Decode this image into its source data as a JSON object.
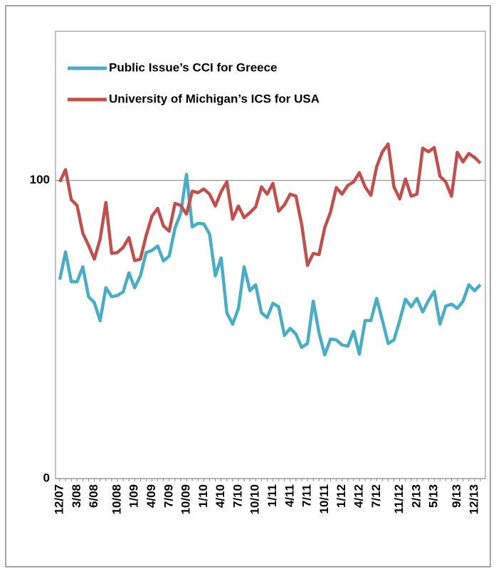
{
  "chart_data": {
    "type": "line",
    "categories": [
      "12/07",
      null,
      null,
      "3/08",
      null,
      null,
      "6/08",
      null,
      null,
      null,
      "10/08",
      null,
      null,
      "1/09",
      null,
      null,
      "4/09",
      null,
      null,
      "7/09",
      null,
      null,
      "10/09",
      null,
      null,
      "1/10",
      null,
      null,
      "4/10",
      null,
      null,
      "7/10",
      null,
      null,
      "10/10",
      null,
      null,
      "1/11",
      null,
      null,
      "4/11",
      null,
      null,
      "7/11",
      null,
      null,
      "10/11",
      null,
      null,
      "1/12",
      null,
      null,
      "4/12",
      null,
      null,
      "7/12",
      null,
      null,
      null,
      "11/12",
      null,
      null,
      "2/13",
      null,
      null,
      "5/13",
      null,
      null,
      null,
      "9/13",
      null,
      null,
      "12/13",
      null
    ],
    "series": [
      {
        "name": "Public Issue’s CCI for Greece",
        "color": "#4bacc6",
        "values": [
          66.7,
          76,
          66,
          66,
          71,
          61,
          59,
          53,
          64,
          61,
          61.4,
          62.6,
          69,
          64,
          68,
          75.8,
          76.5,
          78,
          73,
          74.6,
          84,
          89,
          102,
          84.4,
          85.6,
          85.4,
          82,
          68,
          74,
          55.6,
          51.8,
          57,
          71,
          63,
          65,
          55.6,
          54,
          58.8,
          57.6,
          48,
          50.4,
          48.4,
          44,
          45.3,
          59.5,
          48.9,
          41.5,
          46.8,
          46.5,
          44.8,
          44.4,
          49.4,
          41.7,
          53,
          53,
          60.4,
          53,
          45.3,
          46.5,
          53,
          60.2,
          57.6,
          60.4,
          55.9,
          59.7,
          62.8,
          51.8,
          57.8,
          58.5,
          57.1,
          59.5,
          65,
          63,
          65
        ]
      },
      {
        "name": "University of Michigan’s ICS for USA",
        "color": "#c0504d",
        "values": [
          99.5,
          103.6,
          93.5,
          91.6,
          82.3,
          78.2,
          73.6,
          80.3,
          92.6,
          75.5,
          75.8,
          77.5,
          80.8,
          73.1,
          73.6,
          81.5,
          88,
          90.6,
          84.7,
          83,
          92.3,
          91.6,
          88.7,
          96.4,
          95.9,
          97.1,
          95.4,
          91.4,
          96.2,
          99.5,
          87,
          91.4,
          87.5,
          89.2,
          91.1,
          97.8,
          95.4,
          99,
          89.7,
          91.8,
          95.4,
          94.7,
          85.1,
          71.5,
          75.5,
          75.1,
          84.2,
          89.4,
          97.6,
          95.4,
          98.3,
          99.5,
          102.6,
          97.8,
          95,
          104.6,
          109.6,
          112.2,
          97.8,
          93.8,
          100.5,
          94.7,
          95.4,
          110.8,
          109.6,
          111,
          101.4,
          99.5,
          94.7,
          109.4,
          106.2,
          109,
          107.7,
          105.8
        ]
      }
    ],
    "ylim": [
      0,
      150
    ],
    "yticks": [
      0,
      100
    ],
    "grid": true,
    "legend": "top-left"
  }
}
